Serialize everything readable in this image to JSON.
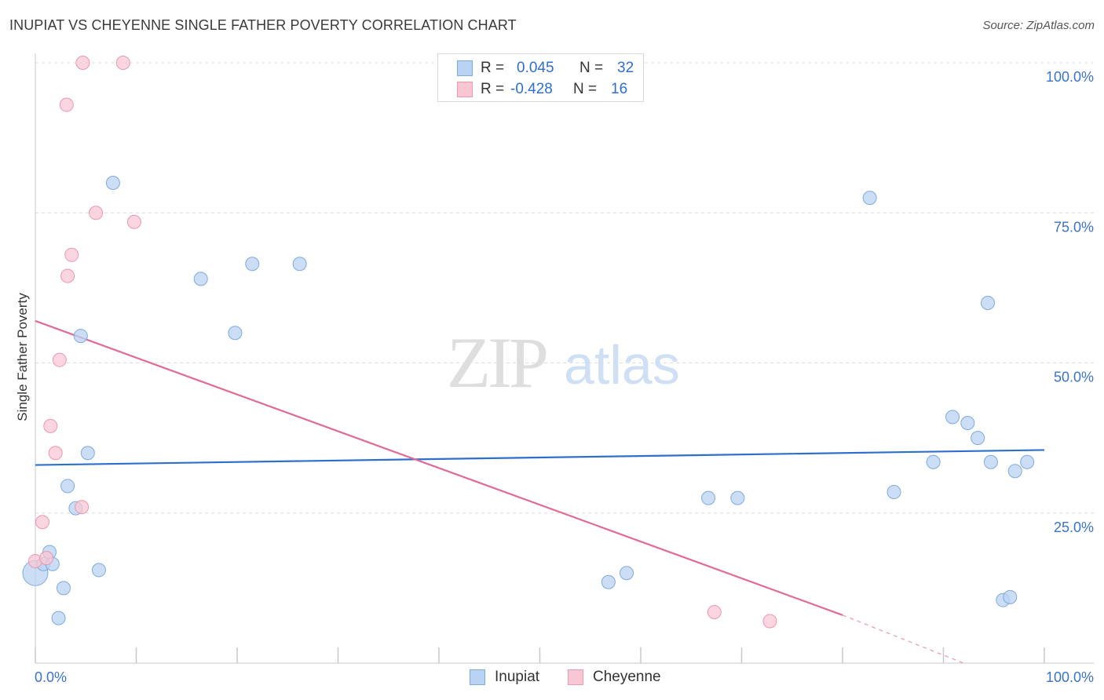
{
  "title": "INUPIAT VS CHEYENNE SINGLE FATHER POVERTY CORRELATION CHART",
  "source": "Source: ZipAtlas.com",
  "watermark": {
    "zip": "ZIP",
    "atlas": "atlas"
  },
  "legend": {
    "r_label": "R =",
    "n_label": "N =",
    "rows": [
      {
        "name": "Inupiat",
        "r": "0.045",
        "n": "32",
        "fill": "#b9d3f3",
        "stroke": "#7fa9df"
      },
      {
        "name": "Cheyenne",
        "r": "-0.428",
        "n": "16",
        "fill": "#f9c7d4",
        "stroke": "#ea99b1"
      }
    ]
  },
  "colors": {
    "inupiat_point_fill": "#b9d3f3",
    "inupiat_point_stroke": "#7fa9df",
    "inupiat_line": "#2e6fcd",
    "cheyenne_point_fill": "#f9c7d4",
    "cheyenne_point_stroke": "#e898b0",
    "cheyenne_line": "#e06b97",
    "tick_label": "#3a73c9",
    "grid": "#dcdcdc"
  },
  "chart_data": {
    "type": "scatter",
    "title": "INUPIAT VS CHEYENNE SINGLE FATHER POVERTY CORRELATION CHART",
    "xlabel": "",
    "ylabel": "Single Father Poverty",
    "xlim": [
      0,
      100
    ],
    "ylim": [
      0,
      100
    ],
    "x_tick_labels": [
      "0.0%",
      "100.0%"
    ],
    "y_ticks": [
      25,
      50,
      75,
      100
    ],
    "y_tick_labels": [
      "25.0%",
      "50.0%",
      "75.0%",
      "100.0%"
    ],
    "series": [
      {
        "name": "Inupiat",
        "r": 0.045,
        "n": 32,
        "points": [
          [
            0.0,
            15.0
          ],
          [
            0.8,
            16.5
          ],
          [
            1.4,
            18.5
          ],
          [
            1.7,
            16.5
          ],
          [
            2.8,
            12.5
          ],
          [
            2.3,
            7.5
          ],
          [
            3.2,
            29.5
          ],
          [
            4.0,
            25.8
          ],
          [
            4.5,
            54.5
          ],
          [
            5.2,
            35.0
          ],
          [
            6.3,
            15.5
          ],
          [
            7.7,
            80.0
          ],
          [
            16.4,
            64.0
          ],
          [
            19.8,
            55.0
          ],
          [
            21.5,
            66.5
          ],
          [
            26.2,
            66.5
          ],
          [
            56.8,
            13.5
          ],
          [
            58.6,
            15.0
          ],
          [
            66.7,
            27.5
          ],
          [
            69.6,
            27.5
          ],
          [
            82.7,
            77.5
          ],
          [
            85.1,
            28.5
          ],
          [
            89.0,
            33.5
          ],
          [
            90.9,
            41.0
          ],
          [
            92.4,
            40.0
          ],
          [
            93.4,
            37.5
          ],
          [
            94.4,
            60.0
          ],
          [
            94.7,
            33.5
          ],
          [
            95.9,
            10.5
          ],
          [
            96.6,
            11.0
          ],
          [
            97.1,
            32.0
          ],
          [
            98.3,
            33.5
          ]
        ],
        "trend": {
          "x": [
            0,
            100
          ],
          "y": [
            33.0,
            35.5
          ]
        }
      },
      {
        "name": "Cheyenne",
        "r": -0.428,
        "n": 16,
        "points": [
          [
            0.0,
            17.0
          ],
          [
            0.7,
            23.5
          ],
          [
            1.1,
            17.5
          ],
          [
            1.5,
            39.5
          ],
          [
            2.0,
            35.0
          ],
          [
            2.4,
            50.5
          ],
          [
            3.1,
            93.0
          ],
          [
            3.2,
            64.5
          ],
          [
            3.6,
            68.0
          ],
          [
            4.6,
            26.0
          ],
          [
            4.7,
            100.0
          ],
          [
            6.0,
            75.0
          ],
          [
            8.7,
            100.0
          ],
          [
            9.8,
            73.5
          ],
          [
            67.3,
            8.5
          ],
          [
            72.8,
            7.0
          ]
        ],
        "trend": {
          "x": [
            0,
            80
          ],
          "y": [
            57.0,
            8.0
          ]
        },
        "trend_extension": {
          "x": [
            80,
            92
          ],
          "y": [
            8.0,
            0.0
          ]
        }
      }
    ]
  }
}
